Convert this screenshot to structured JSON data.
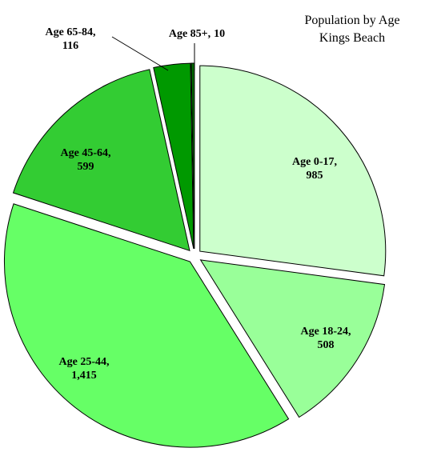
{
  "chart_data": {
    "type": "pie",
    "title": "Population by Age",
    "subtitle": "Kings Beach",
    "categories": [
      "Age 0-17,",
      "Age 18-24,",
      "Age 25-44,",
      "Age 45-64,",
      "Age 65-84,",
      "Age 85+,"
    ],
    "values": [
      985,
      508,
      1415,
      599,
      116,
      10
    ],
    "value_labels": [
      "985",
      "508",
      "1,415",
      "599",
      "116",
      "10"
    ],
    "colors": [
      "#ccffcc",
      "#99ff99",
      "#66ff66",
      "#33cc33",
      "#009900",
      "#006600"
    ]
  }
}
